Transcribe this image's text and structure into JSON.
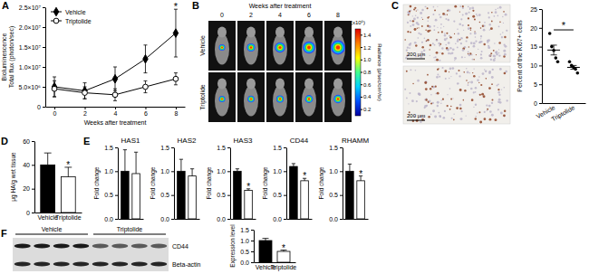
{
  "figure": {
    "panel_labels": [
      "A",
      "B",
      "C",
      "D",
      "E",
      "F"
    ],
    "panel_b": {
      "title": "Weeks after treatment",
      "columns": [
        0,
        2,
        4,
        6,
        8
      ],
      "rows": [
        "Vehicle",
        "Triptolide"
      ],
      "colorbar": {
        "unit": "(x10⁶)",
        "label": "Radiance (p/sec/cm²/sr)",
        "range": [
          0.1,
          1.5
        ],
        "ticks": [
          1.4,
          1.2,
          {
            "value": 1.0,
            "label": "1.0"
          },
          0.8,
          0.6,
          0.4,
          0.2
        ]
      }
    },
    "panel_c": {
      "scale_bars": [
        "200 μm",
        "200 μm"
      ]
    },
    "panel_f": {
      "groups": [
        "Vehicle",
        "Triptolide"
      ],
      "rows": [
        "CD44",
        "Beta-actin"
      ]
    }
  },
  "chart_data": [
    {
      "type": "line",
      "y_label": [
        "Bioluminescence",
        "Total flux (photon/sec)"
      ],
      "x_label": "Weeks after treatment",
      "x": [
        0,
        2,
        4,
        6,
        8
      ],
      "xlim": [
        -0.6,
        8.6
      ],
      "xticks": [
        0,
        2,
        4,
        6,
        8
      ],
      "ylim": [
        0,
        25000000
      ],
      "yticks": [
        0,
        {
          "value": 5000000,
          "label": "5.0×10⁶"
        },
        {
          "value": 10000000,
          "label": "1.0×10⁷"
        },
        {
          "value": 15000000,
          "label": "1.5×10⁷"
        },
        {
          "value": 20000000,
          "label": "2.0×10⁷"
        },
        {
          "value": 25000000,
          "label": "2.5×10⁷"
        }
      ],
      "legend": "top-left",
      "series": [
        {
          "name": "Vehicle",
          "color": "#000000",
          "marker": "diamond",
          "values": [
            5000000,
            4000000,
            7000000,
            12000000,
            18500000
          ],
          "errors": [
            2500000,
            2000000,
            3000000,
            3500000,
            6000000
          ]
        },
        {
          "name": "Triptolide",
          "color": "#000000",
          "marker": "circle-open",
          "values": [
            4500000,
            3500000,
            3000000,
            5000000,
            7000000
          ],
          "errors": [
            2000000,
            1500000,
            1500000,
            1500000,
            1500000
          ]
        }
      ],
      "annotations": [
        {
          "text": "*",
          "x": 8
        }
      ]
    },
    {
      "type": "scatter",
      "y_label": "Percent of the Ki67+ cells",
      "categories": [
        "Vehicle",
        "Triptolide"
      ],
      "ylim": [
        0,
        25
      ],
      "yticks": [
        0,
        5,
        10,
        15,
        20,
        25
      ],
      "points": [
        [
          18.5,
          15,
          14,
          12,
          11
        ],
        [
          11,
          10,
          9.5,
          9,
          8
        ]
      ],
      "means": [
        14.1,
        9.5
      ],
      "sems": [
        1.3,
        0.5
      ],
      "colors": [
        "#000000",
        "#000000"
      ],
      "annotations": [
        {
          "text": "*",
          "index": [
            0,
            1
          ]
        }
      ]
    },
    {
      "type": "bar",
      "y_label": "μg HA/g wet tissue",
      "categories": [
        "Vehicle",
        "Triptolide"
      ],
      "values": [
        40,
        30
      ],
      "errors": [
        10,
        8
      ],
      "colors": [
        "#000000",
        "#ffffff"
      ],
      "ylim": [
        0,
        60
      ],
      "yticks": [
        0,
        20,
        40,
        60
      ],
      "annotations": [
        {
          "text": "*",
          "index": 1
        }
      ]
    },
    {
      "type": "bar",
      "title": "HAS1",
      "y_label": "Fold change",
      "categories": [
        null,
        null
      ],
      "values": [
        1.0,
        0.95
      ],
      "errors": [
        0.45,
        0.45
      ],
      "colors": [
        "#000000",
        "#ffffff"
      ],
      "ylim": [
        0,
        1.5
      ],
      "yticks": [
        {
          "value": 0,
          "label": "0.0"
        },
        0.5,
        {
          "value": 1.0,
          "label": "1.0"
        },
        1.5
      ]
    },
    {
      "type": "bar",
      "title": "HAS2",
      "y_label": "Fold change",
      "categories": [
        null,
        null
      ],
      "values": [
        1.0,
        0.9
      ],
      "errors": [
        0.25,
        0.15
      ],
      "colors": [
        "#000000",
        "#ffffff"
      ],
      "ylim": [
        0,
        1.5
      ],
      "yticks": [
        {
          "value": 0,
          "label": "0.0"
        },
        0.5,
        {
          "value": 1.0,
          "label": "1.0"
        },
        1.5
      ]
    },
    {
      "type": "bar",
      "title": "HAS3",
      "y_label": "Fold change",
      "categories": [
        null,
        null
      ],
      "values": [
        1.0,
        0.6
      ],
      "errors": [
        0.05,
        0.03
      ],
      "colors": [
        "#000000",
        "#ffffff"
      ],
      "ylim": [
        0,
        1.5
      ],
      "yticks": [
        {
          "value": 0,
          "label": "0.0"
        },
        0.5,
        {
          "value": 1.0,
          "label": "1.0"
        },
        1.5
      ],
      "annotations": [
        {
          "text": "*",
          "index": 1
        }
      ]
    },
    {
      "type": "bar",
      "title": "CD44",
      "y_label": "Fold change",
      "categories": [
        null,
        null
      ],
      "values": [
        1.1,
        0.8
      ],
      "errors": [
        0.06,
        0.05
      ],
      "colors": [
        "#000000",
        "#ffffff"
      ],
      "ylim": [
        0,
        1.5
      ],
      "yticks": [
        {
          "value": 0,
          "label": "0.0"
        },
        0.5,
        {
          "value": 1.0,
          "label": "1.0"
        },
        1.5
      ],
      "annotations": [
        {
          "text": "*",
          "index": 1
        }
      ]
    },
    {
      "type": "bar",
      "title": "RHAMM",
      "y_label": "Fold change",
      "categories": [
        null,
        null
      ],
      "values": [
        1.0,
        0.8
      ],
      "errors": [
        0.15,
        0.1
      ],
      "colors": [
        "#000000",
        "#ffffff"
      ],
      "ylim": [
        0,
        1.5
      ],
      "yticks": [
        {
          "value": 0,
          "label": "0.0"
        },
        0.5,
        {
          "value": 1.0,
          "label": "1.0"
        },
        1.5
      ],
      "annotations": [
        {
          "text": "*",
          "index": 1
        }
      ]
    },
    {
      "type": "bar",
      "y_label": "Expression level",
      "categories": [
        "Vehicle",
        "Triptolide"
      ],
      "values": [
        1.0,
        0.5
      ],
      "errors": [
        0.1,
        0.06
      ],
      "colors": [
        "#000000",
        "#ffffff"
      ],
      "ylim": [
        0,
        1.5
      ],
      "yticks": [
        {
          "value": 0,
          "label": "0.0"
        },
        0.5,
        {
          "value": 1.0,
          "label": "1.0"
        },
        1.5
      ],
      "annotations": [
        {
          "text": "*",
          "index": 1
        }
      ]
    }
  ]
}
